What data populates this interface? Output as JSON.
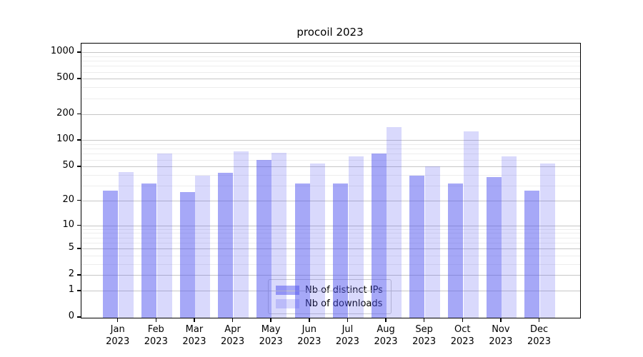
{
  "chart_data": {
    "type": "bar",
    "title": "procoil 2023",
    "categories": [
      "Jan 2023",
      "Feb 2023",
      "Mar 2023",
      "Apr 2023",
      "May 2023",
      "Jun 2023",
      "Jul 2023",
      "Aug 2023",
      "Sep 2023",
      "Oct 2023",
      "Nov 2023",
      "Dec 2023"
    ],
    "month_line1": [
      "Jan",
      "Feb",
      "Mar",
      "Apr",
      "May",
      "Jun",
      "Jul",
      "Aug",
      "Sep",
      "Oct",
      "Nov",
      "Dec"
    ],
    "month_line2": "2023",
    "series": [
      {
        "name": "Nb of distinct IPs",
        "values": [
          26,
          32,
          25,
          42,
          59,
          32,
          32,
          70,
          39,
          32,
          38,
          26
        ],
        "fill": "rgba(77,81,239,0.5)"
      },
      {
        "name": "Nb of downloads",
        "values": [
          43,
          70,
          39,
          74,
          72,
          54,
          66,
          142,
          50,
          126,
          65,
          54
        ],
        "fill": "rgba(77,81,239,0.215)"
      }
    ],
    "xlabel": "",
    "ylabel": "",
    "yscale": "log1p",
    "ylim": [
      0,
      1330
    ],
    "yticks": [
      0,
      1,
      2,
      5,
      10,
      20,
      50,
      100,
      200,
      500,
      1000
    ],
    "minor_gridlines": [
      3,
      4,
      6,
      7,
      8,
      9,
      30,
      40,
      60,
      70,
      80,
      90,
      300,
      400,
      600,
      700,
      800,
      900
    ],
    "grid": true,
    "legend_position": "lower center",
    "colors": {
      "bar_base": "#4d51ef",
      "major_grid": "#c6c6c6",
      "minor_grid": "#ededed",
      "axis": "#000000"
    }
  }
}
